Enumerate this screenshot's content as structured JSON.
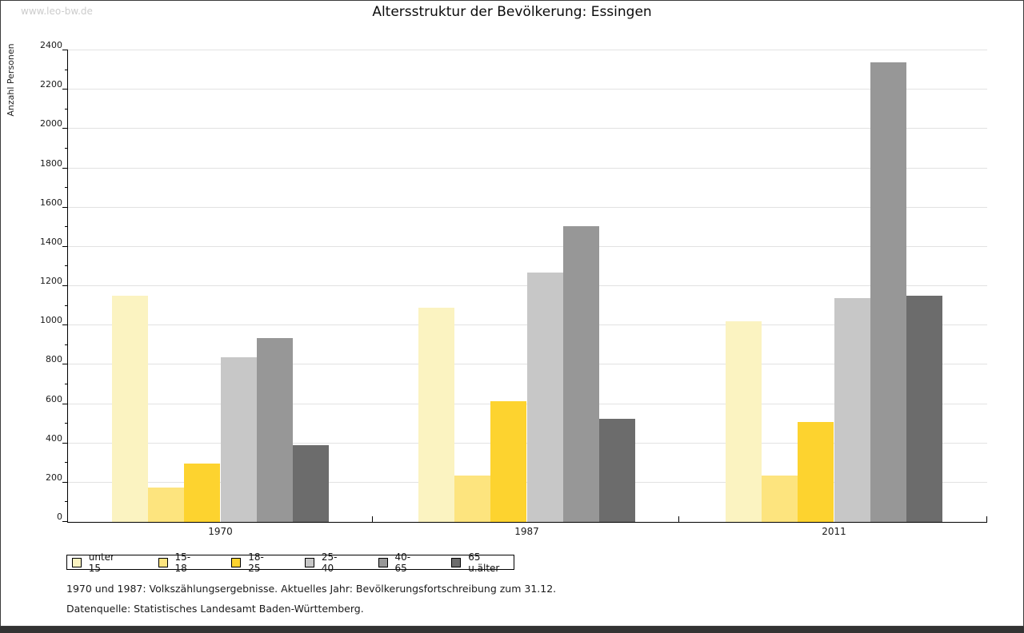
{
  "watermark": "www.leo-bw.de",
  "title": "Altersstruktur der Bevölkerung: Essingen",
  "footnotes": {
    "line1": "1970 und 1987: Volkszählungsergebnisse. Aktuelles Jahr: Bevölkerungsfortschreibung zum 31.12.",
    "line2": "Datenquelle: Statistisches Landesamt Baden-Württemberg."
  },
  "colors": {
    "grid": "#e2e2e2",
    "axis": "#000000",
    "bottom_bar": "#333333",
    "watermark_text": "#cccccc"
  },
  "chart_data": {
    "type": "bar",
    "title": "Altersstruktur der Bevölkerung: Essingen",
    "ylabel": "Anzahl Personen",
    "xlabel": "",
    "categories": [
      "1970",
      "1987",
      "2011"
    ],
    "series": [
      {
        "name": "unter 15",
        "color": "#fbf3c1",
        "values": [
          1150,
          1090,
          1020
        ]
      },
      {
        "name": "15-18",
        "color": "#fde47e",
        "values": [
          175,
          235,
          235
        ]
      },
      {
        "name": "18-25",
        "color": "#fdd32f",
        "values": [
          295,
          615,
          510
        ]
      },
      {
        "name": "25-40",
        "color": "#c7c7c7",
        "values": [
          840,
          1270,
          1140
        ]
      },
      {
        "name": "40-65",
        "color": "#979797",
        "values": [
          935,
          1505,
          2340
        ]
      },
      {
        "name": "65 u.älter",
        "color": "#6c6c6c",
        "values": [
          390,
          525,
          1150
        ]
      }
    ],
    "ylim": [
      0,
      2400
    ],
    "ytick_major_step": 200,
    "ytick_minor_step": 100,
    "grid": true,
    "legend_position": "bottom-left"
  }
}
